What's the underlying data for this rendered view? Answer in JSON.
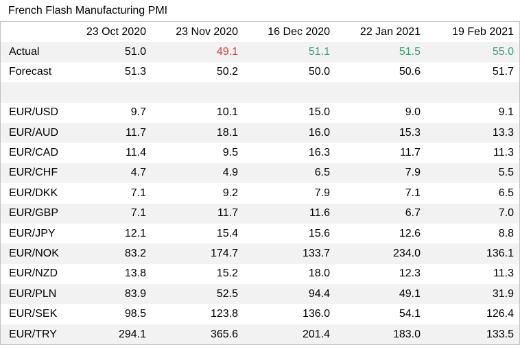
{
  "title": "French Flash Manufacturing PMI",
  "columns": [
    "23 Oct 2020",
    "23 Nov 2020",
    "16 Dec 2020",
    "22 Jan 2021",
    "19 Feb 2021"
  ],
  "colors": {
    "red": "#d9413d",
    "green": "#3a9e6f",
    "shade": "#f2f2f2"
  },
  "rows": [
    {
      "label": "Actual",
      "values": [
        "51.0",
        "49.1",
        "51.1",
        "51.5",
        "55.0"
      ],
      "styles": [
        "",
        "red",
        "green",
        "green",
        "green"
      ]
    },
    {
      "label": "Forecast",
      "values": [
        "51.3",
        "50.2",
        "50.0",
        "50.6",
        "51.7"
      ]
    },
    {
      "label": "",
      "values": [
        "",
        "",
        "",
        "",
        ""
      ]
    },
    {
      "label": "EUR/USD",
      "values": [
        "9.7",
        "10.1",
        "15.0",
        "9.0",
        "9.1"
      ]
    },
    {
      "label": "EUR/AUD",
      "values": [
        "11.7",
        "18.1",
        "16.0",
        "15.3",
        "13.3"
      ]
    },
    {
      "label": "EUR/CAD",
      "values": [
        "11.4",
        "9.5",
        "16.3",
        "11.7",
        "11.3"
      ]
    },
    {
      "label": "EUR/CHF",
      "values": [
        "4.7",
        "4.9",
        "6.5",
        "7.9",
        "5.5"
      ]
    },
    {
      "label": "EUR/DKK",
      "values": [
        "7.1",
        "9.2",
        "7.9",
        "7.1",
        "6.5"
      ]
    },
    {
      "label": "EUR/GBP",
      "values": [
        "7.1",
        "11.7",
        "11.6",
        "6.7",
        "7.0"
      ]
    },
    {
      "label": "EUR/JPY",
      "values": [
        "12.1",
        "15.4",
        "15.6",
        "12.6",
        "8.8"
      ]
    },
    {
      "label": "EUR/NOK",
      "values": [
        "83.2",
        "174.7",
        "133.7",
        "234.0",
        "136.1"
      ]
    },
    {
      "label": "EUR/NZD",
      "values": [
        "13.8",
        "15.2",
        "18.0",
        "12.3",
        "11.3"
      ]
    },
    {
      "label": "EUR/PLN",
      "values": [
        "83.9",
        "52.5",
        "94.4",
        "49.1",
        "31.9"
      ]
    },
    {
      "label": "EUR/SEK",
      "values": [
        "98.5",
        "123.8",
        "136.0",
        "54.1",
        "126.4"
      ]
    },
    {
      "label": "EUR/TRY",
      "values": [
        "294.1",
        "365.6",
        "201.4",
        "183.0",
        "133.5"
      ]
    }
  ]
}
